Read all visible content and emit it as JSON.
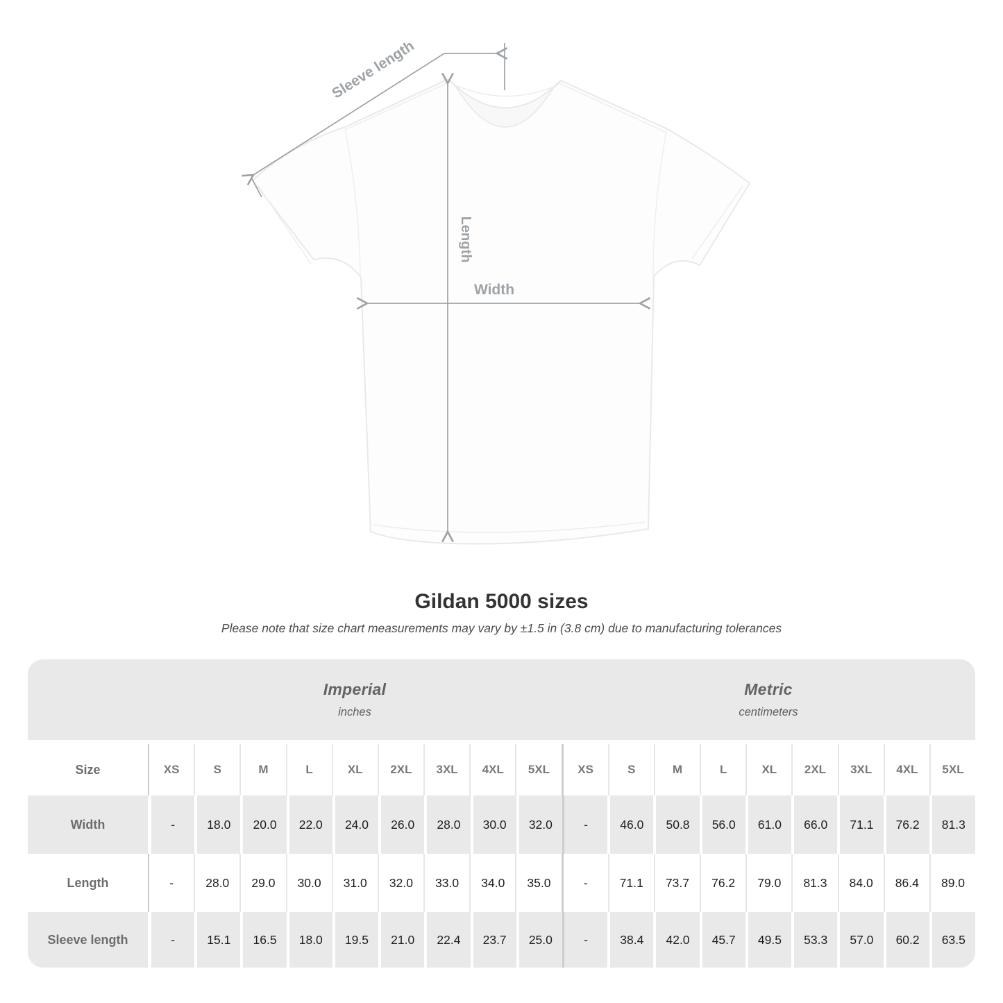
{
  "title": "Gildan 5000 sizes",
  "subtitle": "Please note that size chart measurements may vary by ±1.5 in (3.8 cm) due to manufacturing tolerances",
  "diagram": {
    "sleeve_label": "Sleeve length",
    "length_label": "Length",
    "width_label": "Width"
  },
  "table": {
    "size_header": "Size",
    "sections": [
      {
        "name": "Imperial",
        "unit": "inches"
      },
      {
        "name": "Metric",
        "unit": "centimeters"
      }
    ],
    "sizes": [
      "XS",
      "S",
      "M",
      "L",
      "XL",
      "2XL",
      "3XL",
      "4XL",
      "5XL"
    ],
    "rows": [
      {
        "label": "Width",
        "imperial": [
          "-",
          "18.0",
          "20.0",
          "22.0",
          "24.0",
          "26.0",
          "28.0",
          "30.0",
          "32.0"
        ],
        "metric": [
          "-",
          "46.0",
          "50.8",
          "56.0",
          "61.0",
          "66.0",
          "71.1",
          "76.2",
          "81.3"
        ]
      },
      {
        "label": "Length",
        "imperial": [
          "-",
          "28.0",
          "29.0",
          "30.0",
          "31.0",
          "32.0",
          "33.0",
          "34.0",
          "35.0"
        ],
        "metric": [
          "-",
          "71.1",
          "73.7",
          "76.2",
          "79.0",
          "81.3",
          "84.0",
          "86.4",
          "89.0"
        ]
      },
      {
        "label": "Sleeve length",
        "imperial": [
          "-",
          "15.1",
          "16.5",
          "18.0",
          "19.5",
          "21.0",
          "22.4",
          "23.7",
          "25.0"
        ],
        "metric": [
          "-",
          "38.4",
          "42.0",
          "45.7",
          "49.5",
          "53.3",
          "57.0",
          "60.2",
          "63.5"
        ]
      }
    ]
  },
  "chart_data": {
    "type": "table",
    "title": "Gildan 5000 sizes",
    "note": "Please note that size chart measurements may vary by ±1.5 in (3.8 cm) due to manufacturing tolerances",
    "column_groups": [
      "Imperial (inches)",
      "Metric (centimeters)"
    ],
    "columns": [
      "XS",
      "S",
      "M",
      "L",
      "XL",
      "2XL",
      "3XL",
      "4XL",
      "5XL"
    ],
    "rows": [
      {
        "measurement": "Width",
        "imperial_inches": [
          null,
          18.0,
          20.0,
          22.0,
          24.0,
          26.0,
          28.0,
          30.0,
          32.0
        ],
        "metric_cm": [
          null,
          46.0,
          50.8,
          56.0,
          61.0,
          66.0,
          71.1,
          76.2,
          81.3
        ]
      },
      {
        "measurement": "Length",
        "imperial_inches": [
          null,
          28.0,
          29.0,
          30.0,
          31.0,
          32.0,
          33.0,
          34.0,
          35.0
        ],
        "metric_cm": [
          null,
          71.1,
          73.7,
          76.2,
          79.0,
          81.3,
          84.0,
          86.4,
          89.0
        ]
      },
      {
        "measurement": "Sleeve length",
        "imperial_inches": [
          null,
          15.1,
          16.5,
          18.0,
          19.5,
          21.0,
          22.4,
          23.7,
          25.0
        ],
        "metric_cm": [
          null,
          38.4,
          42.0,
          45.7,
          49.5,
          53.3,
          57.0,
          60.2,
          63.5
        ]
      }
    ]
  },
  "colors": {
    "band_gray": "#e9e9e9",
    "row_alt_gray": "#e9e9e9",
    "annotation_gray": "#9da2a6",
    "data_text": "#1f1f1f",
    "muted_text": "#6d6d6d",
    "title_text": "#333333"
  }
}
